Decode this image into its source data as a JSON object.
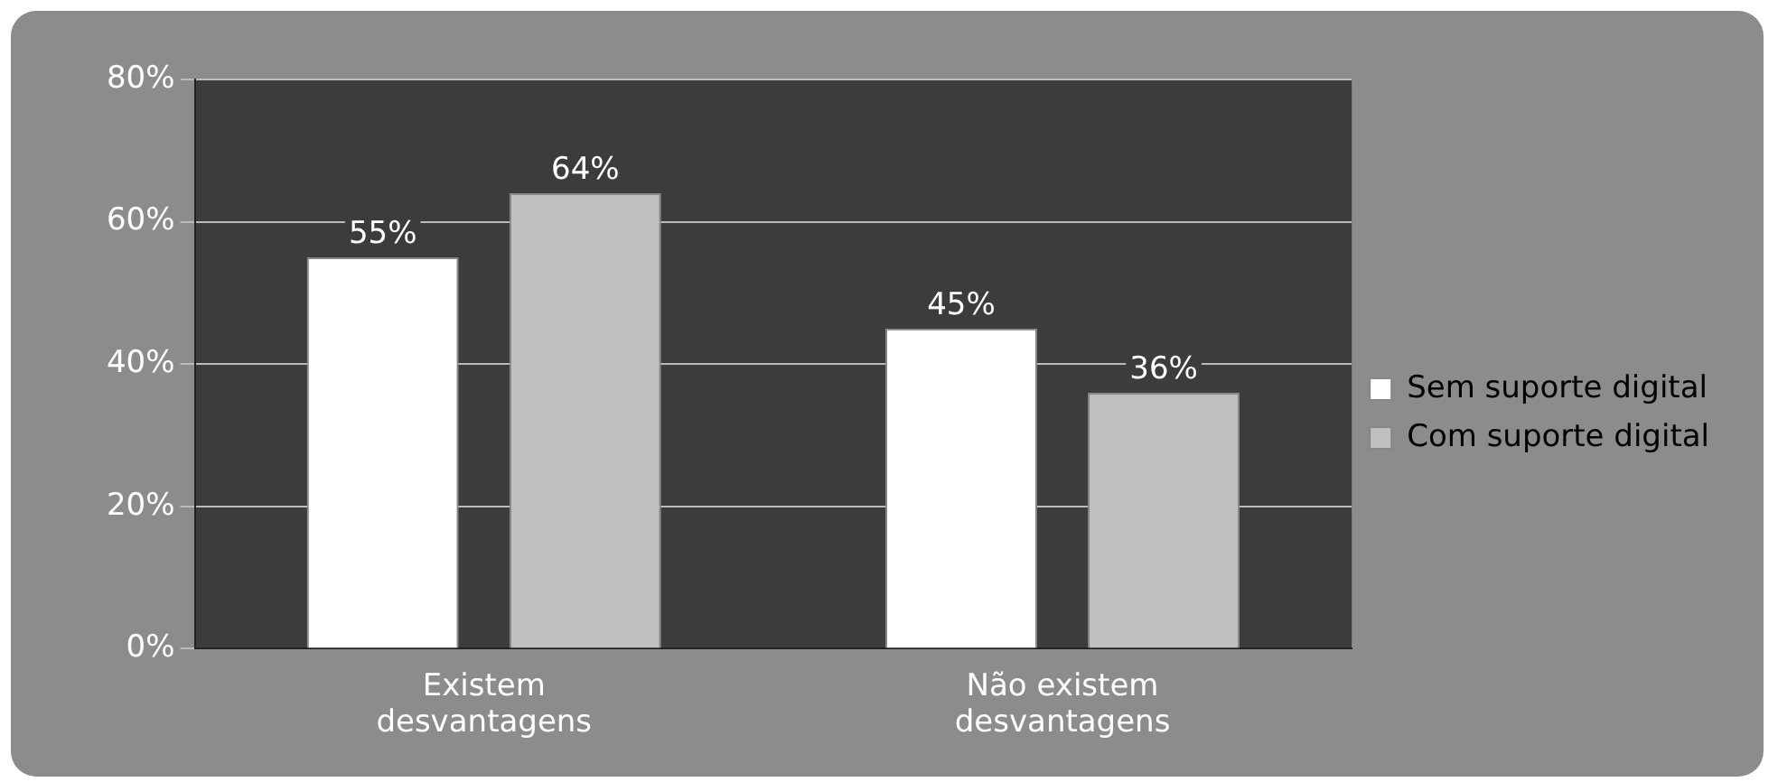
{
  "chart_data": {
    "type": "bar",
    "categories": [
      "Existem desvantagens",
      "Não existem desvantagens"
    ],
    "series": [
      {
        "name": "Sem suporte digital",
        "color": "#ffffff",
        "values": [
          55,
          45
        ],
        "value_labels": [
          "55%",
          "45%"
        ]
      },
      {
        "name": "Com suporte digital",
        "color": "#c0c0c0",
        "values": [
          64,
          36
        ],
        "value_labels": [
          "64%",
          "36%"
        ]
      }
    ],
    "ylim": [
      0,
      80
    ],
    "yticks": [
      {
        "value": 0,
        "label": "0%"
      },
      {
        "value": 20,
        "label": "20%"
      },
      {
        "value": 40,
        "label": "40%"
      },
      {
        "value": 60,
        "label": "60%"
      },
      {
        "value": 80,
        "label": "80%"
      }
    ],
    "grid": "y",
    "legend": "right"
  }
}
